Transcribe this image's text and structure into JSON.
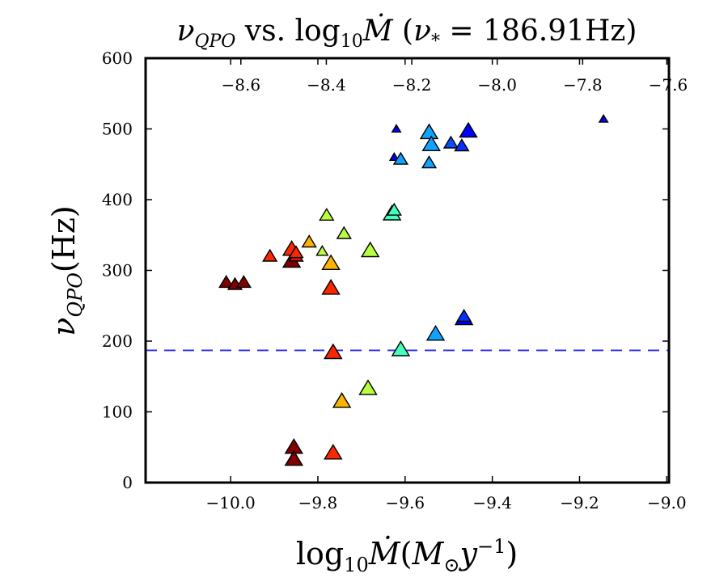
{
  "chart_data": {
    "type": "scatter",
    "title": {
      "nu": "ν",
      "nu_sub": "QPO",
      "vs": " vs. log",
      "log_sub": "10",
      "mdot": "Ṁ",
      "paren_open": " (",
      "star_nu": "ν",
      "star_sub": "*",
      "eq_value": " = 186.91Hz)"
    },
    "xlabel": {
      "log": "log",
      "log_sub": "10",
      "mdot": "Ṁ",
      "open": "(",
      "m": "M",
      "m_sub": "⊙",
      "y": "y",
      "y_sup": "−1",
      "close": ")"
    },
    "ylabel": {
      "nu": "ν",
      "nu_sub": "QPO",
      "unit": "(Hz)"
    },
    "xlim": [
      -10.195,
      -8.995
    ],
    "ylim": [
      0,
      600
    ],
    "x_ticks": [
      "−10.0",
      "−9.8",
      "−9.6",
      "−9.4",
      "−9.2",
      "−9.0"
    ],
    "x_tick_values": [
      -10.0,
      -9.8,
      -9.6,
      -9.4,
      -9.2,
      -9.0
    ],
    "y_ticks": [
      "0",
      "100",
      "200",
      "300",
      "400",
      "500",
      "600"
    ],
    "y_tick_values": [
      0,
      100,
      200,
      300,
      400,
      500,
      600
    ],
    "top_axis": {
      "xlim": [
        -8.823,
        -7.598
      ],
      "ticks": [
        "−8.6",
        "−8.4",
        "−8.2",
        "−8.0",
        "−7.8",
        "−7.6"
      ],
      "tick_values": [
        -8.6,
        -8.4,
        -8.2,
        -8.0,
        -7.8,
        -7.6
      ]
    },
    "reference_line": {
      "y": 186.91,
      "style": "dashed",
      "color": "#2a2aee"
    },
    "colormap_stops": [
      "#800000",
      "#ff2a00",
      "#ffb000",
      "#b8ff40",
      "#40ffc0",
      "#10a0ff",
      "#0000ff"
    ],
    "series": [
      {
        "name": "qpo",
        "points": [
          {
            "x": -10.01,
            "y": 283,
            "c": 0.0,
            "s": "m"
          },
          {
            "x": -9.99,
            "y": 280,
            "c": 0.0,
            "s": "m"
          },
          {
            "x": -9.97,
            "y": 283,
            "c": 0.0,
            "s": "m"
          },
          {
            "x": -9.91,
            "y": 320,
            "c": 0.16,
            "s": "m"
          },
          {
            "x": -9.86,
            "y": 313,
            "c": 0.0,
            "s": "l"
          },
          {
            "x": -9.85,
            "y": 320,
            "c": 0.1,
            "s": "m"
          },
          {
            "x": -9.86,
            "y": 330,
            "c": 0.16,
            "s": "l"
          },
          {
            "x": -9.85,
            "y": 325,
            "c": 0.16,
            "s": "m"
          },
          {
            "x": -9.82,
            "y": 340,
            "c": 0.34,
            "s": "m"
          },
          {
            "x": -9.79,
            "y": 327,
            "c": 0.5,
            "s": "s"
          },
          {
            "x": -9.78,
            "y": 378,
            "c": 0.5,
            "s": "m"
          },
          {
            "x": -9.77,
            "y": 310,
            "c": 0.34,
            "s": "l"
          },
          {
            "x": -9.77,
            "y": 275,
            "c": 0.16,
            "s": "l"
          },
          {
            "x": -9.74,
            "y": 352,
            "c": 0.5,
            "s": "m"
          },
          {
            "x": -9.68,
            "y": 328,
            "c": 0.5,
            "s": "l"
          },
          {
            "x": -9.63,
            "y": 380,
            "c": 0.66,
            "s": "l"
          },
          {
            "x": -9.625,
            "y": 385,
            "c": 0.66,
            "s": "m"
          },
          {
            "x": -9.625,
            "y": 460,
            "c": 1.0,
            "s": "xs"
          },
          {
            "x": -9.62,
            "y": 500,
            "c": 1.0,
            "s": "xs"
          },
          {
            "x": -9.61,
            "y": 457,
            "c": 0.83,
            "s": "m"
          },
          {
            "x": -9.545,
            "y": 495,
            "c": 0.83,
            "s": "l"
          },
          {
            "x": -9.54,
            "y": 478,
            "c": 0.83,
            "s": "l"
          },
          {
            "x": -9.545,
            "y": 452,
            "c": 0.83,
            "s": "m"
          },
          {
            "x": -9.495,
            "y": 480,
            "c": 0.92,
            "s": "m"
          },
          {
            "x": -9.47,
            "y": 476,
            "c": 0.95,
            "s": "m"
          },
          {
            "x": -9.455,
            "y": 497,
            "c": 1.0,
            "s": "l"
          },
          {
            "x": -9.145,
            "y": 514,
            "c": 1.0,
            "s": "xs"
          },
          {
            "x": -9.855,
            "y": 50,
            "c": 0.0,
            "s": "l"
          },
          {
            "x": -9.855,
            "y": 33,
            "c": 0.0,
            "s": "l"
          },
          {
            "x": -9.765,
            "y": 42,
            "c": 0.16,
            "s": "l"
          },
          {
            "x": -9.765,
            "y": 184,
            "c": 0.16,
            "s": "l"
          },
          {
            "x": -9.745,
            "y": 115,
            "c": 0.34,
            "s": "l"
          },
          {
            "x": -9.685,
            "y": 133,
            "c": 0.5,
            "s": "l"
          },
          {
            "x": -9.61,
            "y": 188,
            "c": 0.66,
            "s": "l"
          },
          {
            "x": -9.53,
            "y": 210,
            "c": 0.83,
            "s": "l"
          },
          {
            "x": -9.465,
            "y": 232,
            "c": 1.0,
            "s": "l"
          },
          {
            "x": -9.465,
            "y": 235,
            "c": 0.95,
            "s": "m"
          }
        ]
      }
    ]
  }
}
